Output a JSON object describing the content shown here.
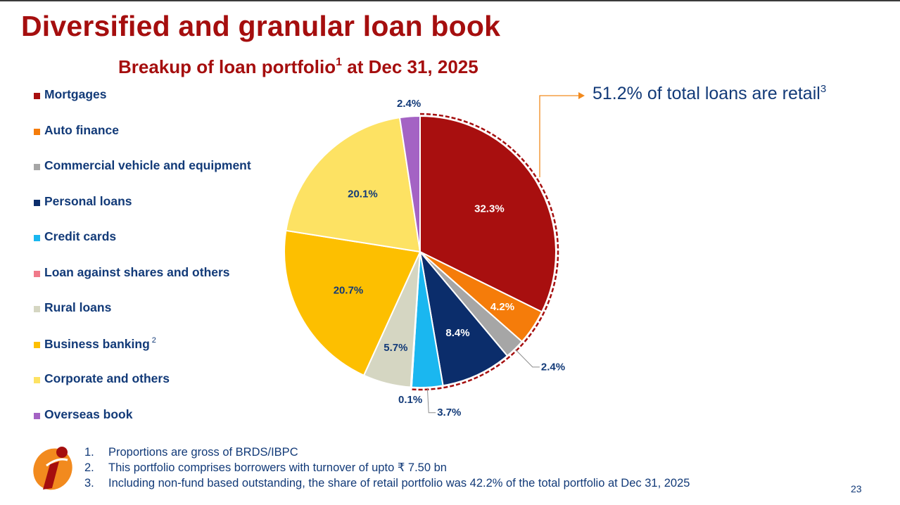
{
  "title": "Diversified and granular loan book",
  "subtitle": {
    "text": "Breakup of loan portfolio",
    "sup": "1",
    "tail": " at Dec 31, 2025"
  },
  "retail_callout": {
    "text": "51.2% of total loans are retail",
    "sup": "3"
  },
  "footnotes": [
    {
      "num": "1.",
      "text": "Proportions are gross of BRDS/IBPC"
    },
    {
      "num": "2.",
      "text": "This portfolio comprises borrowers with turnover of upto ₹ 7.50 bn"
    },
    {
      "num": "3.",
      "text": "Including non-fund based outstanding, the share of retail portfolio was 42.2% of the total portfolio at Dec 31, 2025"
    }
  ],
  "page_number": "23",
  "chart_data": {
    "type": "pie",
    "title": "Breakup of loan portfolio at Dec 31, 2025",
    "start_angle_deg": 0,
    "direction": "clockwise",
    "retail_group": [
      "Mortgages",
      "Auto finance",
      "Commercial vehicle and equipment",
      "Personal loans",
      "Credit cards",
      "Loan against shares and others"
    ],
    "retail_total_label": "51.2% of total loans are retail",
    "slices": [
      {
        "label": "Mortgages",
        "sup": "",
        "value": 32.3,
        "value_label": "32.3%",
        "color": "#a80f0f",
        "label_color": "#ffffff",
        "label_style": "inside"
      },
      {
        "label": "Auto finance",
        "sup": "",
        "value": 4.2,
        "value_label": "4.2%",
        "color": "#f57c0a",
        "label_color": "#ffffff",
        "label_style": "inside"
      },
      {
        "label": "Commercial vehicle and equipment",
        "sup": "",
        "value": 2.4,
        "value_label": "2.4%",
        "color": "#a6a6a6",
        "label_color": "#123a78",
        "label_style": "leader"
      },
      {
        "label": "Personal loans",
        "sup": "",
        "value": 8.4,
        "value_label": "8.4%",
        "color": "#0b2d6b",
        "label_color": "#ffffff",
        "label_style": "inside"
      },
      {
        "label": "Credit cards",
        "sup": "",
        "value": 3.7,
        "value_label": "3.7%",
        "color": "#1ab7f0",
        "label_color": "#123a78",
        "label_style": "leader"
      },
      {
        "label": "Loan against shares and others",
        "sup": "",
        "value": 0.1,
        "value_label": "0.1%",
        "color": "#f07a8a",
        "label_color": "#123a78",
        "label_style": "outside"
      },
      {
        "label": "Rural loans",
        "sup": "",
        "value": 5.7,
        "value_label": "5.7%",
        "color": "#d5d6c2",
        "label_color": "#123a78",
        "label_style": "inside"
      },
      {
        "label": "Business banking",
        "sup": "2",
        "value": 20.7,
        "value_label": "20.7%",
        "color": "#fdbf00",
        "label_color": "#123a78",
        "label_style": "inside"
      },
      {
        "label": "Corporate and others",
        "sup": "",
        "value": 20.1,
        "value_label": "20.1%",
        "color": "#fde263",
        "label_color": "#123a78",
        "label_style": "inside"
      },
      {
        "label": "Overseas book",
        "sup": "",
        "value": 2.4,
        "value_label": "2.4%",
        "color": "#a463c4",
        "label_color": "#123a78",
        "label_style": "outside"
      }
    ]
  }
}
